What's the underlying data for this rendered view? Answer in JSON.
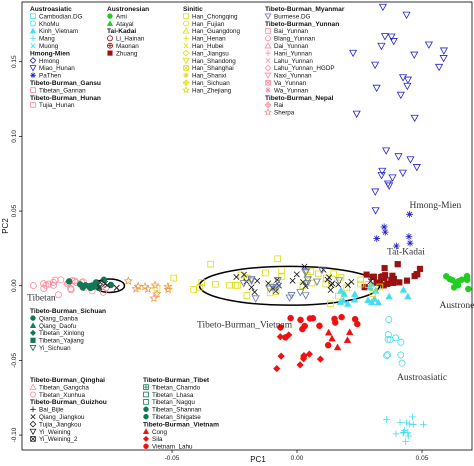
{
  "chart_data": {
    "type": "scatter",
    "xlabel": "PC1",
    "ylabel": "PC2",
    "xlim": [
      -0.11,
      0.07
    ],
    "ylim": [
      -0.11,
      0.19
    ],
    "xticks": [
      -0.05,
      0.0,
      0.05
    ],
    "xtick_labels": [
      "-0.05",
      "0.00",
      "0.05"
    ],
    "yticks": [
      -0.1,
      -0.05,
      0.0,
      0.05,
      0.1,
      0.15
    ],
    "ytick_labels": [
      "-0.10",
      "-0.05",
      "0.00",
      "0.05",
      "0.10",
      "0.15"
    ],
    "grid": false,
    "cluster_labels": [
      {
        "text": "Hmong-Mien",
        "x": 0.045,
        "y": 0.052
      },
      {
        "text": "Tai-Kadai",
        "x": 0.036,
        "y": 0.021
      },
      {
        "text": "Tibetan",
        "x": -0.108,
        "y": -0.01
      },
      {
        "text": "Austronesian",
        "x": 0.057,
        "y": -0.015
      },
      {
        "text": "Tibeto-Burman_Vietnam",
        "x": -0.04,
        "y": -0.028
      },
      {
        "text": "Austroasiatic",
        "x": 0.04,
        "y": -0.063
      }
    ],
    "ellipses": [
      {
        "cx": -0.075,
        "cy": 0.0,
        "rx": 0.006,
        "ry": 0.0045
      },
      {
        "cx": -0.003,
        "cy": 0.0,
        "rx": 0.036,
        "ry": 0.013
      }
    ],
    "clusters": [
      {
        "color": "#2222cc",
        "shape": "tri-down",
        "cx": 0.043,
        "cy": 0.148,
        "sx": 0.01,
        "sy": 0.02,
        "n": 20
      },
      {
        "color": "#2222cc",
        "shape": "tri-down",
        "cx": 0.038,
        "cy": 0.075,
        "sx": 0.006,
        "sy": 0.012,
        "n": 12
      },
      {
        "color": "#2222cc",
        "shape": "star",
        "cx": 0.041,
        "cy": 0.036,
        "sx": 0.005,
        "sy": 0.006,
        "n": 7
      },
      {
        "color": "#991111",
        "shape": "square",
        "cx": 0.036,
        "cy": 0.007,
        "sx": 0.006,
        "sy": 0.004,
        "n": 24
      },
      {
        "color": "#22cc22",
        "shape": "circle",
        "cx": 0.063,
        "cy": 0.003,
        "sx": 0.005,
        "sy": 0.003,
        "n": 14
      },
      {
        "color": "#44ddee",
        "shape": "tri-up",
        "cx": 0.026,
        "cy": -0.005,
        "sx": 0.01,
        "sy": 0.004,
        "n": 18
      },
      {
        "color": "#44ddee",
        "shape": "ring",
        "cx": 0.038,
        "cy": -0.038,
        "sx": 0.004,
        "sy": 0.01,
        "n": 10
      },
      {
        "color": "#44ddee",
        "shape": "plus",
        "cx": 0.044,
        "cy": -0.095,
        "sx": 0.004,
        "sy": 0.005,
        "n": 14
      },
      {
        "color": "#ee1111",
        "shape": "circle",
        "cx": 0.008,
        "cy": -0.028,
        "sx": 0.007,
        "sy": 0.006,
        "n": 15
      },
      {
        "color": "#ee1111",
        "shape": "diamond",
        "cx": -0.002,
        "cy": -0.045,
        "sx": 0.004,
        "sy": 0.006,
        "n": 10
      },
      {
        "color": "#ee1111",
        "shape": "tri-up",
        "cx": 0.015,
        "cy": -0.036,
        "sx": 0.004,
        "sy": 0.003,
        "n": 5
      },
      {
        "color": "#dddd11",
        "shape": "square-open",
        "cx": -0.004,
        "cy": 0.002,
        "sx": 0.022,
        "sy": 0.006,
        "n": 38
      },
      {
        "color": "#111111",
        "shape": "x",
        "cx": 0.003,
        "cy": 0.002,
        "sx": 0.012,
        "sy": 0.005,
        "n": 26
      },
      {
        "color": "#6677aa",
        "shape": "tri-down-open",
        "cx": -0.008,
        "cy": 0.0,
        "sx": 0.014,
        "sy": 0.005,
        "n": 20
      },
      {
        "color": "#ff8899",
        "shape": "ring",
        "cx": -0.088,
        "cy": 0.0,
        "sx": 0.009,
        "sy": 0.0025,
        "n": 24
      },
      {
        "color": "#117755",
        "shape": "circle",
        "cx": -0.08,
        "cy": 0.0,
        "sx": 0.006,
        "sy": 0.002,
        "n": 12
      },
      {
        "color": "#ee9944",
        "shape": "star-open",
        "cx": -0.062,
        "cy": -0.002,
        "sx": 0.006,
        "sy": 0.003,
        "n": 10
      },
      {
        "color": "#222222",
        "shape": "x",
        "cx": -0.075,
        "cy": 0.0,
        "sx": 0.0025,
        "sy": 0.0012,
        "n": 6
      }
    ],
    "legend": [
      {
        "group": "Austroasiatic",
        "items": [
          {
            "label": "Cambodian.DG",
            "color": "#44ddee",
            "shape": "square-open"
          },
          {
            "label": "KhoMu",
            "color": "#44ddee",
            "shape": "ring"
          },
          {
            "label": "Kinh_Vietnam",
            "color": "#44ddee",
            "shape": "tri-up"
          },
          {
            "label": "Mang",
            "color": "#44ddee",
            "shape": "plus"
          },
          {
            "label": "Muong",
            "color": "#44ddee",
            "shape": "x"
          }
        ]
      },
      {
        "group": "Hmong-Mien",
        "items": [
          {
            "label": "Hmong",
            "color": "#2222cc",
            "shape": "diamond-open"
          },
          {
            "label": "Miao_Hunan",
            "color": "#2222cc",
            "shape": "tri-down"
          },
          {
            "label": "PaThen",
            "color": "#2222cc",
            "shape": "star"
          }
        ]
      },
      {
        "group": "Tibeto-Burman_Gansu",
        "items": [
          {
            "label": "Tibetan_Gannan",
            "color": "#ff8899",
            "shape": "square-open"
          }
        ]
      },
      {
        "group": "Tibeto-Burman_Hunan",
        "items": [
          {
            "label": "Tujia_Hunan",
            "color": "#ff8899",
            "shape": "square-open"
          }
        ]
      },
      {
        "group": "Austronesian",
        "items": [
          {
            "label": "Ami",
            "color": "#22cc22",
            "shape": "circle"
          },
          {
            "label": "Atayal",
            "color": "#22cc22",
            "shape": "tri-up"
          }
        ]
      },
      {
        "group": "Tai-Kadai",
        "items": [
          {
            "label": "Li_Hainan",
            "color": "#991111",
            "shape": "ring"
          },
          {
            "label": "Maonan",
            "color": "#991111",
            "shape": "plus-circle"
          },
          {
            "label": "Zhuang",
            "color": "#991111",
            "shape": "square"
          }
        ]
      },
      {
        "group": "Sinitic",
        "items": [
          {
            "label": "Han_Chongqing",
            "color": "#dddd11",
            "shape": "square-open"
          },
          {
            "label": "Han_Fujian",
            "color": "#dddd11",
            "shape": "ring"
          },
          {
            "label": "Han_Guangdong",
            "color": "#dddd11",
            "shape": "tri-up-open"
          },
          {
            "label": "Han_Henan",
            "color": "#dddd11",
            "shape": "plus"
          },
          {
            "label": "Han_Hubei",
            "color": "#dddd11",
            "shape": "x"
          },
          {
            "label": "Han_Jiangsu",
            "color": "#dddd11",
            "shape": "diamond-open"
          },
          {
            "label": "Han_Shandong",
            "color": "#dddd11",
            "shape": "tri-down-open"
          },
          {
            "label": "Han_Shanghai",
            "color": "#dddd11",
            "shape": "square-x"
          },
          {
            "label": "Han_Shanxi",
            "color": "#dddd11",
            "shape": "star"
          },
          {
            "label": "Han_Sichuan",
            "color": "#dddd11",
            "shape": "diamond-plus"
          },
          {
            "label": "Han_Zhejiang",
            "color": "#dddd11",
            "shape": "star-open"
          }
        ]
      },
      {
        "group": "Tibeto-Burman_Myanmar",
        "items": [
          {
            "label": "Burmese.DG",
            "color": "#6677aa",
            "shape": "tri-down-open"
          }
        ]
      },
      {
        "group": "Tibeto-Burman_Yunnan",
        "items": [
          {
            "label": "Bai_Yunnan",
            "color": "#ff8899",
            "shape": "square-open"
          },
          {
            "label": "Blang_Yunnan",
            "color": "#ff8899",
            "shape": "ring"
          },
          {
            "label": "Dai_Yunnan",
            "color": "#ff8899",
            "shape": "tri-up-open"
          },
          {
            "label": "Hani_Yunnan",
            "color": "#ff8899",
            "shape": "plus"
          },
          {
            "label": "Lahu_Yunnan",
            "color": "#ff8899",
            "shape": "x"
          },
          {
            "label": "Lahu_Yunnan_HGDP",
            "color": "#ff8899",
            "shape": "diamond-open"
          },
          {
            "label": "Naxi_Yunnan",
            "color": "#ff8899",
            "shape": "tri-down-open"
          },
          {
            "label": "Va_Yunnan",
            "color": "#ff8899",
            "shape": "square-x"
          },
          {
            "label": "Wa_Yunnan",
            "color": "#ff8899",
            "shape": "star"
          }
        ]
      },
      {
        "group": "Tibeto-Burman_Nepal",
        "items": [
          {
            "label": "Rai",
            "color": "#ff8899",
            "shape": "diamond-plus"
          },
          {
            "label": "Sherpa",
            "color": "#ff8899",
            "shape": "star-open"
          }
        ]
      },
      {
        "group": "Tibeto-Burman_Sichuan",
        "items": [
          {
            "label": "Qiang_Danba",
            "color": "#117755",
            "shape": "circle"
          },
          {
            "label": "Qiang_Daofu",
            "color": "#117755",
            "shape": "tri-up"
          },
          {
            "label": "Tibetan_Xinlong",
            "color": "#117755",
            "shape": "diamond"
          },
          {
            "label": "Tibetan_Yajiang",
            "color": "#117755",
            "shape": "square"
          },
          {
            "label": "Yi_Sichuan",
            "color": "#117755",
            "shape": "tri-down"
          }
        ]
      },
      {
        "group": "Tibeto-Burman_Qinghai",
        "items": [
          {
            "label": "Tibetan_Gangcha",
            "color": "#ff8899",
            "shape": "tri-up-open"
          },
          {
            "label": "Tibetan_Xunhua",
            "color": "#ff8899",
            "shape": "ring"
          }
        ]
      },
      {
        "group": "Tibeto-Burman_Guizhou",
        "items": [
          {
            "label": "Bai_Bijie",
            "color": "#222222",
            "shape": "plus"
          },
          {
            "label": "Qiang_Jiangkou",
            "color": "#222222",
            "shape": "x"
          },
          {
            "label": "Tujia_Jiangkou",
            "color": "#222222",
            "shape": "diamond-open"
          },
          {
            "label": "Yi_Weining",
            "color": "#222222",
            "shape": "tri-down-open"
          },
          {
            "label": "Yi_Weining_2",
            "color": "#222222",
            "shape": "square-x"
          }
        ]
      },
      {
        "group": "Tibeto-Burman_Tibet",
        "items": [
          {
            "label": "Tibetan_Chamdo",
            "color": "#117755",
            "shape": "square-plus"
          },
          {
            "label": "Tibetan_Lhasa",
            "color": "#117755",
            "shape": "square-open"
          },
          {
            "label": "Tibetan_Nagqu",
            "color": "#117755",
            "shape": "square-open"
          },
          {
            "label": "Tibetan_Shannan",
            "color": "#117755",
            "shape": "circle"
          },
          {
            "label": "Tibetan_Shigatse",
            "color": "#117755",
            "shape": "circle"
          }
        ]
      },
      {
        "group": "Tibeto-Burman_Vietnam",
        "items": [
          {
            "label": "Cong",
            "color": "#ee1111",
            "shape": "tri-up"
          },
          {
            "label": "Sila",
            "color": "#ee1111",
            "shape": "diamond"
          },
          {
            "label": "Vietnam_Lahu",
            "color": "#ee1111",
            "shape": "circle"
          }
        ]
      }
    ]
  }
}
